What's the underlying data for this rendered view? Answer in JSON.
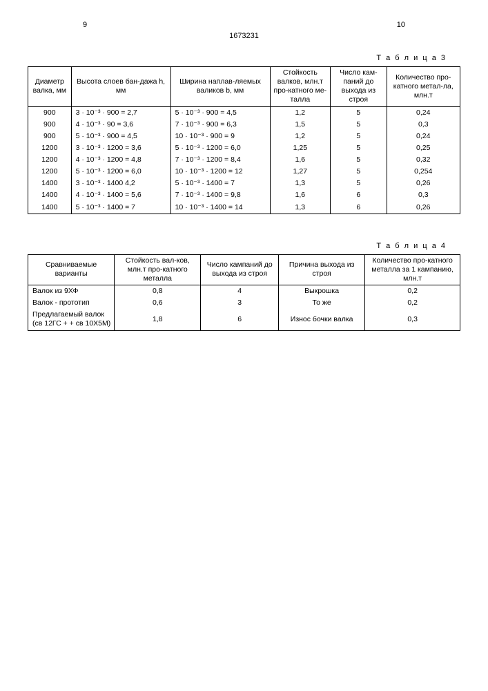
{
  "page": {
    "left_num": "9",
    "right_num": "10",
    "doc_num": "1673231"
  },
  "table3": {
    "label": "Т а б л и ц а 3",
    "columns": [
      "Диаметр валка, мм",
      "Высота слоев бан-дажа h, мм",
      "Ширина наплав-ляемых валиков b, мм",
      "Стойкость валков, млн.т про-катного ме-талла",
      "Число кам-паний до выхода из строя",
      "Количество про-катного метал-ла, млн.т"
    ],
    "rows": [
      [
        "900",
        "3 · 10⁻³ · 900 = 2,7",
        "5 · 10⁻³ · 900 = 4,5",
        "1,2",
        "5",
        "0,24"
      ],
      [
        "900",
        "4 · 10⁻³ · 90   = 3,6",
        "7 · 10⁻³ · 900 = 6,3",
        "1,5",
        "5",
        "0,3"
      ],
      [
        "900",
        "5 · 10⁻³ · 900 = 4,5",
        "10 · 10⁻³ · 900 = 9",
        "1,2",
        "5",
        "0,24"
      ],
      [
        "1200",
        "3 · 10⁻³ · 1200 = 3,6",
        "5 · 10⁻³ · 1200 = 6,0",
        "1,25",
        "5",
        "0,25"
      ],
      [
        "1200",
        "4 · 10⁻³ · 1200 = 4,8",
        "7 · 10⁻³ · 1200 = 8,4",
        "1,6",
        "5",
        "0,32"
      ],
      [
        "1200",
        "5 · 10⁻³ · 1200 = 6,0",
        "10 · 10⁻³ · 1200 = 12",
        "1,27",
        "5",
        "0,254"
      ],
      [
        "1400",
        "3 · 10⁻³ · 1400  4,2",
        "5 · 10⁻³ · 1400 = 7",
        "1,3",
        "5",
        "0,26"
      ],
      [
        "1400",
        "4 · 10⁻³ · 1400 = 5,6",
        "7 · 10⁻³ · 1400 = 9,8",
        "1,6",
        "6",
        "0,3"
      ],
      [
        "1400",
        "5 · 10⁻³ · 1400 = 7",
        "10 · 10⁻³ · 1400 = 14",
        "1,3",
        "6",
        "0,26"
      ]
    ]
  },
  "table4": {
    "label": "Т а б л и ц а 4",
    "columns": [
      "Сравниваемые варианты",
      "Стойкость вал-ков, млн.т про-катного металла",
      "Число кампаний до выхода из строя",
      "Причина выхода из строя",
      "Количество про-катного металла за 1 кампанию, млн.т"
    ],
    "rows": [
      [
        "Валок из 9ХФ",
        "0,8",
        "4",
        "Выкрошка",
        "0,2"
      ],
      [
        "Валок - прототип",
        "0,6",
        "3",
        "То же",
        "0,2"
      ],
      [
        "Предлагаемый валок (св 12ГС + + св 10Х5М)",
        "1,8",
        "6",
        "Износ бочки валка",
        "0,3"
      ]
    ]
  }
}
